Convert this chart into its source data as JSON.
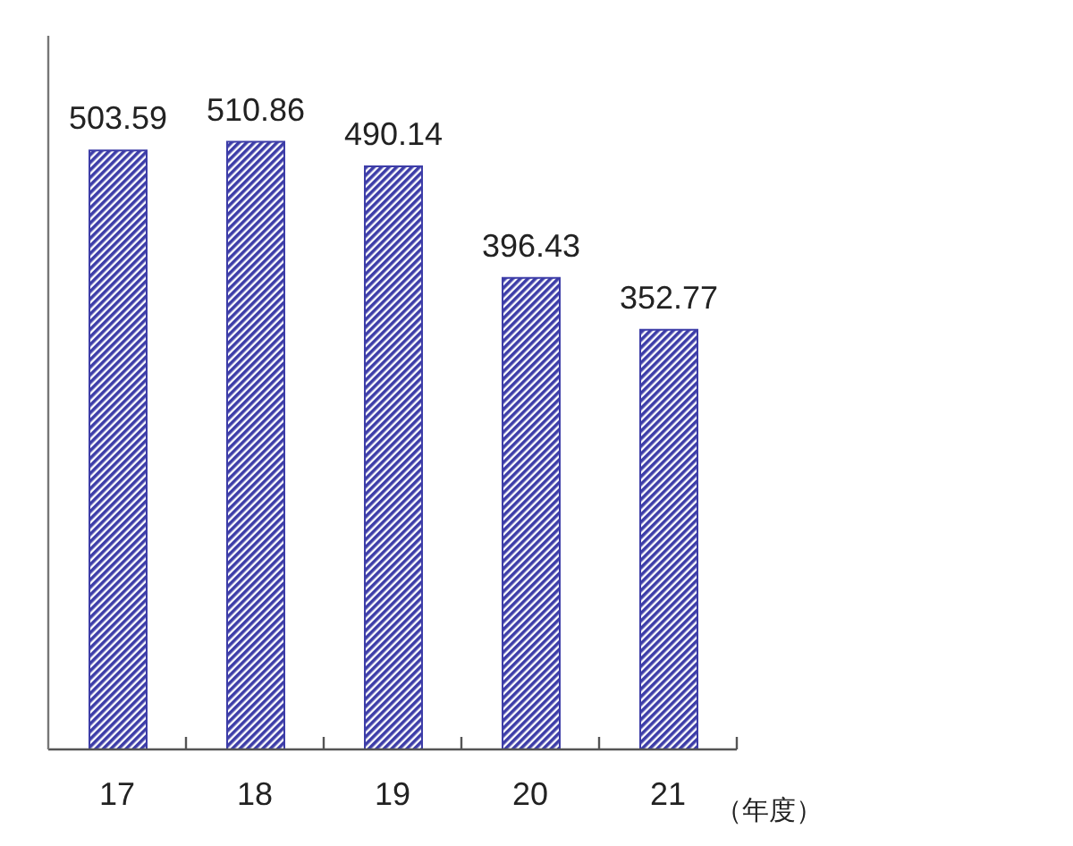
{
  "chart_data": {
    "type": "bar",
    "xlabel": "（年度）",
    "categories": [
      "17",
      "18",
      "19",
      "20",
      "21"
    ],
    "values": [
      503.59,
      510.86,
      490.14,
      396.43,
      352.77
    ],
    "color": "#3d3da8",
    "ylim": [
      0,
      600
    ],
    "data_labels": true,
    "tick_labels": "x"
  }
}
